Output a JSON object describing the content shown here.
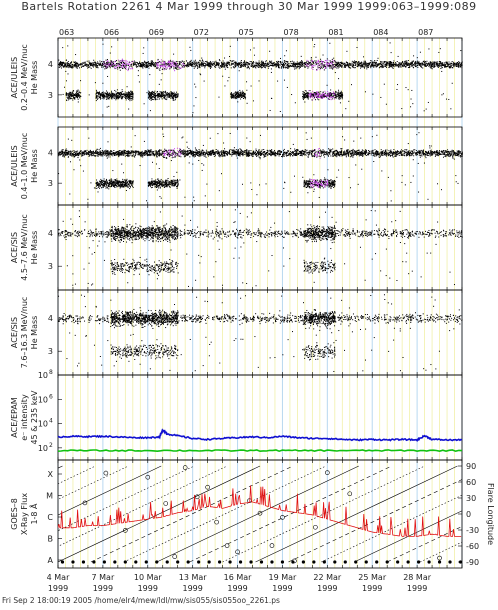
{
  "header": {
    "title": "Bartels Rotation 2261    4 Mar 1999 through 30 Mar 1999    1999:063–1999:089"
  },
  "footer": {
    "text": "Fri Sep  2 18:00:19 2005    /home/elr4/mew/ldl/mw/sis055/sis055oo_2261.ps"
  },
  "top_axis": {
    "day_labels": [
      "063",
      "066",
      "069",
      "072",
      "075",
      "078",
      "081",
      "084",
      "087"
    ]
  },
  "bottom_axis": {
    "date_labels": [
      {
        "date": "4 Mar",
        "year": "1999"
      },
      {
        "date": "7 Mar",
        "year": "1999"
      },
      {
        "date": "10 Mar",
        "year": "1999"
      },
      {
        "date": "13 Mar",
        "year": "1999"
      },
      {
        "date": "16 Mar",
        "year": "1999"
      },
      {
        "date": "19 Mar",
        "year": "1999"
      },
      {
        "date": "22 Mar",
        "year": "1999"
      },
      {
        "date": "25 Mar",
        "year": "1999"
      },
      {
        "date": "28 Mar",
        "year": "1999"
      }
    ]
  },
  "colors": {
    "grid_yellow": "#f1f0a8",
    "grid_blue": "#b8d8f0",
    "scatter": "#000000",
    "highlight": "#c040e0",
    "epam_blue": "#1010d0",
    "epam_green": "#10c010",
    "xray_red": "#e01010"
  },
  "chart_data": [
    {
      "type": "scatter",
      "panel": "ULEIS 0.2-0.4",
      "ylabel_lines": [
        "ACE/ULEIS",
        "0.2–0.4 MeV/nuc",
        "He Mass"
      ],
      "yticks": [
        "4",
        "3"
      ],
      "x": "day of year 1999 (63–90)",
      "bands": [
        {
          "mass": 4,
          "active": [
            [
              63,
              90
            ]
          ]
        },
        {
          "mass": 3,
          "active": [
            [
              63.5,
              64.5
            ],
            [
              65.5,
              68
            ],
            [
              69,
              71
            ],
            [
              74.5,
              75.5
            ],
            [
              79.3,
              82
            ]
          ]
        }
      ],
      "highlight_mass4": [
        [
          66,
          68
        ],
        [
          69.5,
          71.5
        ],
        [
          79.5,
          81.5
        ]
      ],
      "highlight_mass3": [
        [
          79.7,
          81.5
        ]
      ]
    },
    {
      "type": "scatter",
      "panel": "ULEIS 0.4-1.0",
      "ylabel_lines": [
        "ACE/ULEIS",
        "0.4–1.0 MeV/nuc",
        "He Mass"
      ],
      "yticks": [
        "4",
        "3"
      ],
      "bands": [
        {
          "mass": 4,
          "active": [
            [
              63,
              90
            ]
          ]
        },
        {
          "mass": 3,
          "active": [
            [
              65.5,
              68
            ],
            [
              69,
              71
            ],
            [
              79.4,
              81.5
            ]
          ]
        }
      ],
      "highlight_mass4": [
        [
          70,
          71.2
        ],
        [
          80,
          80.5
        ]
      ],
      "highlight_mass3": [
        [
          79.8,
          81
        ]
      ]
    },
    {
      "type": "scatter",
      "panel": "SIS 4.5-7.6",
      "ylabel_lines": [
        "ACE/SIS",
        "4.5–7.6 MeV/nuc",
        "He Mass"
      ],
      "yticks": [
        "4",
        "3"
      ],
      "clusters": [
        [
          66.5,
          69
        ],
        [
          69,
          71
        ],
        [
          79.4,
          81.5
        ]
      ]
    },
    {
      "type": "scatter",
      "panel": "SIS 7.6-16.3",
      "ylabel_lines": [
        "ACE/SIS",
        "7.6–16.3 MeV/nuc",
        "He Mass"
      ],
      "yticks": [
        "4",
        "3"
      ],
      "clusters": [
        [
          66.5,
          69
        ],
        [
          69,
          71
        ],
        [
          79.4,
          81.5
        ]
      ]
    },
    {
      "type": "line",
      "panel": "EPAM",
      "ylabel_lines": [
        "ACE/EPAM",
        "e⁻ intensity",
        "45 & 235 keV"
      ],
      "yscale": "log",
      "ylim": [
        10,
        100000000.0
      ],
      "ytick_values": [
        100.0,
        10000.0,
        1000000.0,
        100000000.0
      ],
      "ytick_labels": [
        {
          "base": "10",
          "exp": "2"
        },
        {
          "base": "10",
          "exp": "4"
        },
        {
          "base": "10",
          "exp": "6"
        },
        {
          "base": "10",
          "exp": "8"
        }
      ],
      "series": [
        {
          "color": "#1010d0",
          "x": [
            63,
            64,
            65,
            66,
            67,
            68,
            69,
            69.8,
            70,
            70.3,
            71,
            72,
            73,
            74,
            75,
            76,
            77,
            78,
            79,
            80,
            81,
            82,
            83,
            84,
            85,
            86,
            87,
            87.5,
            88,
            89,
            90
          ],
          "values": [
            800,
            900,
            850,
            900,
            800,
            700,
            700,
            800,
            3000,
            1400,
            1000,
            600,
            500,
            600,
            700,
            800,
            700,
            900,
            700,
            600,
            600,
            500,
            450,
            500,
            450,
            500,
            450,
            1000,
            500,
            450,
            450
          ]
        },
        {
          "color": "#10c010",
          "x": [
            63,
            66,
            69,
            72,
            75,
            78,
            81,
            84,
            87,
            90
          ],
          "values": [
            60,
            60,
            60,
            60,
            60,
            60,
            60,
            60,
            60,
            60
          ]
        }
      ]
    },
    {
      "type": "line",
      "panel": "GOES-8 X-ray",
      "ylabel_lines": [
        "GOES–8",
        "X-Ray Flux",
        "1-8 Å"
      ],
      "left_ticks": [
        "X",
        "M",
        "C",
        "B",
        "A"
      ],
      "right_ticks": [
        "90",
        "60",
        "30",
        "0",
        "-30",
        "-60",
        "-90"
      ],
      "right_label": "Flare Longitude",
      "xray_x": [
        63,
        64,
        65,
        66,
        67,
        68,
        69,
        70,
        71,
        72,
        73,
        74,
        75,
        76,
        77,
        78,
        79,
        80,
        81,
        82,
        83,
        84,
        85,
        86,
        87,
        88,
        89,
        90
      ],
      "xray_level": [
        1.5,
        1.5,
        1.6,
        1.6,
        1.7,
        1.8,
        1.9,
        2.0,
        2.2,
        2.3,
        2.5,
        2.4,
        2.6,
        2.7,
        2.5,
        2.3,
        2.2,
        2.1,
        1.9,
        1.7,
        1.5,
        1.3,
        1.2,
        1.1,
        1.1,
        1.2,
        1.1,
        1.1
      ],
      "flare_x": [
        64.8,
        66.2,
        67.5,
        69.0,
        70.2,
        70.8,
        71.5,
        72.3,
        73.0,
        73.6,
        74.3,
        75.0,
        75.8,
        76.5,
        77.3,
        78.0,
        78.8,
        80.2,
        81.0,
        82.5,
        88.5
      ]
    }
  ]
}
